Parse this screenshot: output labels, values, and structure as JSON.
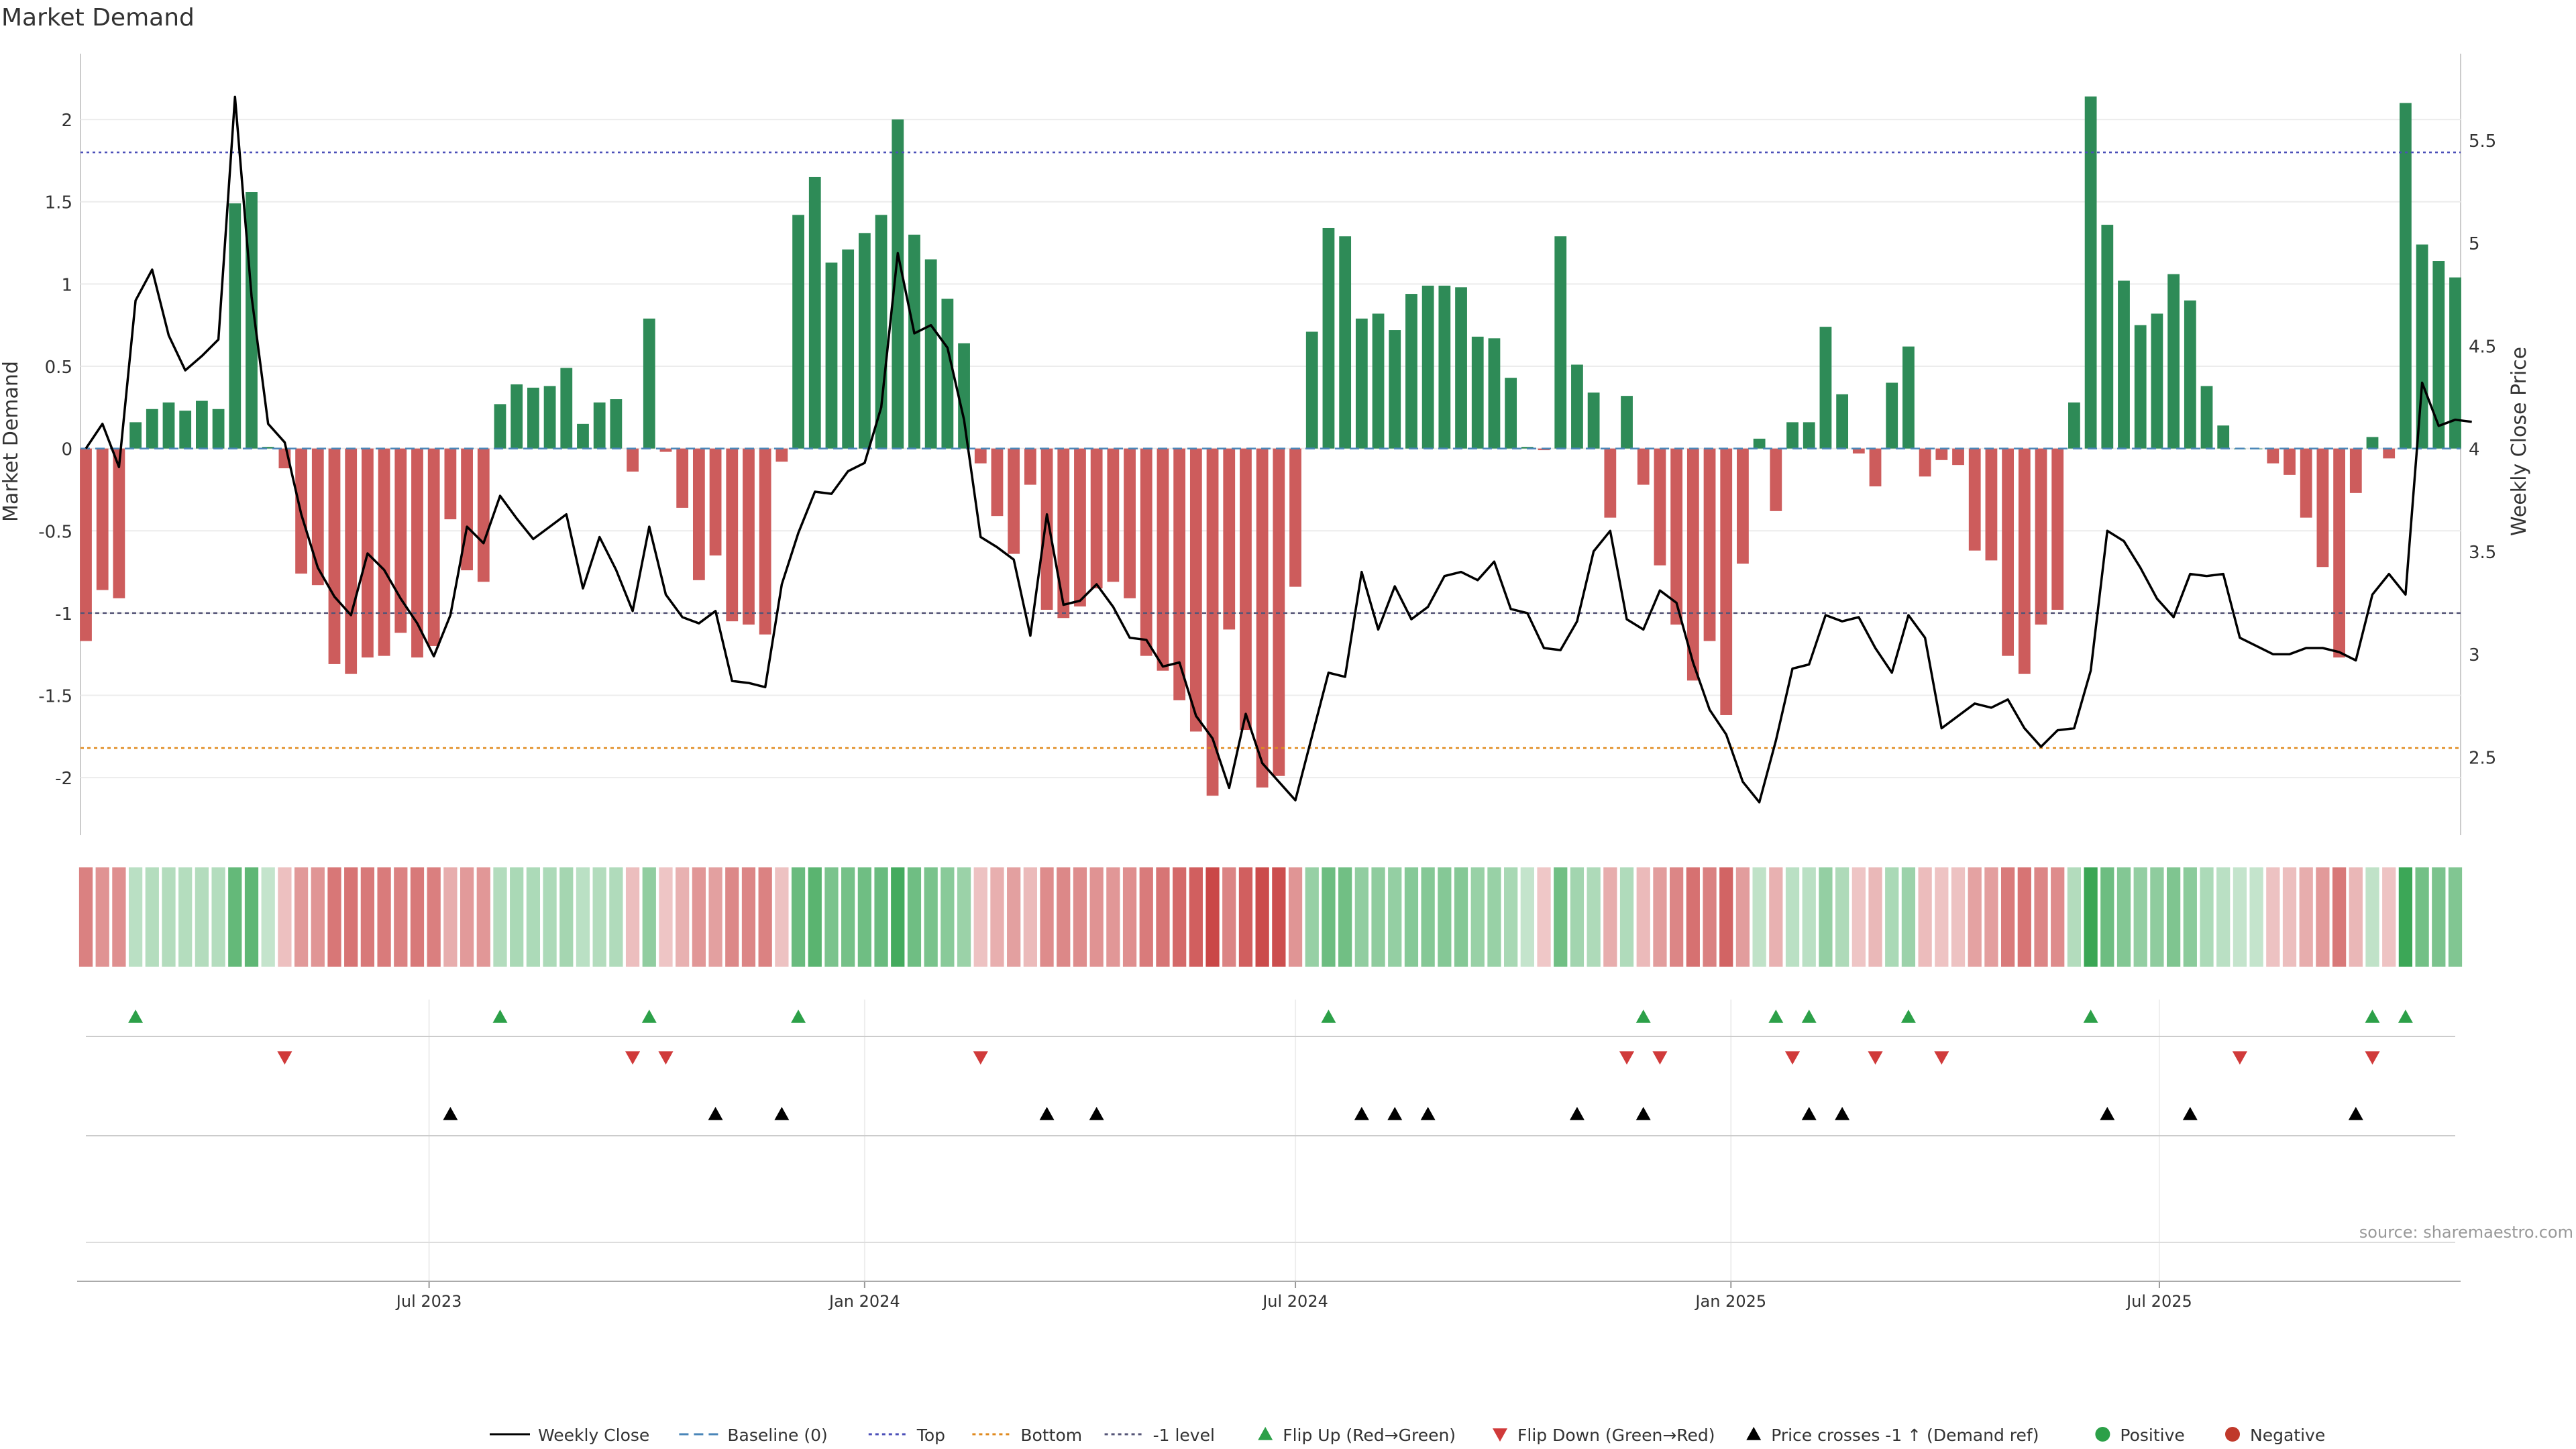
{
  "chart_data": {
    "type": "bar",
    "title": "Market Demand",
    "ylabel": "Market Demand",
    "y2label": "Weekly Close Price",
    "ylim": [
      -2.35,
      2.4
    ],
    "y2lim": [
      2.12,
      5.92
    ],
    "yticks": [
      "2",
      "1.5",
      "1",
      "0.5",
      "0",
      "-0.5",
      "-1",
      "-1.5",
      "-2"
    ],
    "ytick_values": [
      2,
      1.5,
      1,
      0.5,
      0,
      -0.5,
      -1,
      -1.5,
      -2
    ],
    "y2ticks": [
      "5.5",
      "5",
      "4.5",
      "4",
      "3.5",
      "3",
      "2.5"
    ],
    "y2tick_values": [
      5.5,
      5,
      4.5,
      4,
      3.5,
      3,
      2.5
    ],
    "levels": {
      "top": 1.8,
      "bottom": -1.82,
      "minus_one": -1
    },
    "x_start": "2023-02-06",
    "x_end": "2025-11-03",
    "xticks": [
      "Jul 2023",
      "Jan 2024",
      "Jul 2024",
      "Jan 2025",
      "Jul 2025"
    ],
    "xtick_dates": [
      "2023-07-01",
      "2024-01-01",
      "2024-07-01",
      "2025-01-01",
      "2025-07-01"
    ],
    "demand_values": [
      -1.17,
      -0.86,
      -0.91,
      0.16,
      0.24,
      0.28,
      0.23,
      0.29,
      0.24,
      1.49,
      1.56,
      0.01,
      -0.12,
      -0.76,
      -0.83,
      -1.31,
      -1.37,
      -1.27,
      -1.26,
      -1.12,
      -1.27,
      -1.2,
      -0.43,
      -0.74,
      -0.81,
      0.27,
      0.39,
      0.37,
      0.38,
      0.49,
      0.15,
      0.28,
      0.3,
      -0.14,
      0.79,
      -0.02,
      -0.36,
      -0.8,
      -0.65,
      -1.05,
      -1.07,
      -1.13,
      -0.08,
      1.42,
      1.65,
      1.13,
      1.21,
      1.31,
      1.42,
      2.0,
      1.3,
      1.15,
      0.91,
      0.64,
      -0.09,
      -0.41,
      -0.64,
      -0.22,
      -0.98,
      -1.03,
      -0.96,
      -0.85,
      -0.81,
      -0.91,
      -1.26,
      -1.35,
      -1.53,
      -1.72,
      -2.11,
      -1.1,
      -1.71,
      -2.06,
      -1.99,
      -0.84,
      0.71,
      1.34,
      1.29,
      0.79,
      0.82,
      0.72,
      0.94,
      0.99,
      0.99,
      0.98,
      0.68,
      0.67,
      0.43,
      0.01,
      -0.01,
      1.29,
      0.51,
      0.34,
      -0.42,
      0.32,
      -0.22,
      -0.71,
      -1.07,
      -1.41,
      -1.17,
      -1.62,
      -0.7,
      0.06,
      -0.38,
      0.16,
      0.16,
      0.74,
      0.33,
      -0.03,
      -0.23,
      0.4,
      0.62,
      -0.17,
      -0.07,
      -0.1,
      -0.62,
      -0.68,
      -1.26,
      -1.37,
      -1.07,
      -0.98,
      0.28,
      2.14,
      1.36,
      1.02,
      0.75,
      0.82,
      1.06,
      0.9,
      0.38,
      0.14,
      0.0,
      0.0,
      -0.09,
      -0.16,
      -0.42,
      -0.72,
      -1.27,
      -0.27,
      0.07,
      -0.06,
      2.1,
      1.24,
      1.14,
      1.04
    ],
    "price_values": [
      4.0,
      4.12,
      3.91,
      4.72,
      4.87,
      4.55,
      4.38,
      4.45,
      4.53,
      5.71,
      4.74,
      4.12,
      4.03,
      3.68,
      3.42,
      3.28,
      3.19,
      3.49,
      3.41,
      3.27,
      3.15,
      2.99,
      3.19,
      3.62,
      3.54,
      3.77,
      3.66,
      3.56,
      3.62,
      3.68,
      3.32,
      3.57,
      3.41,
      3.21,
      3.62,
      3.29,
      3.18,
      3.15,
      3.21,
      2.87,
      2.86,
      2.84,
      3.34,
      3.59,
      3.79,
      3.78,
      3.89,
      3.93,
      4.2,
      4.95,
      4.56,
      4.6,
      4.49,
      4.14,
      3.57,
      3.52,
      3.46,
      3.09,
      3.68,
      3.24,
      3.26,
      3.34,
      3.23,
      3.08,
      3.07,
      2.94,
      2.96,
      2.7,
      2.59,
      2.35,
      2.71,
      2.47,
      2.38,
      2.29,
      2.6,
      2.91,
      2.89,
      3.4,
      3.12,
      3.33,
      3.17,
      3.23,
      3.38,
      3.4,
      3.36,
      3.45,
      3.22,
      3.2,
      3.03,
      3.02,
      3.16,
      3.5,
      3.6,
      3.17,
      3.12,
      3.31,
      3.25,
      2.96,
      2.73,
      2.61,
      2.38,
      2.28,
      2.58,
      2.93,
      2.95,
      3.19,
      3.16,
      3.18,
      3.03,
      2.91,
      3.19,
      3.08,
      2.64,
      2.7,
      2.76,
      2.74,
      2.78,
      2.64,
      2.55,
      2.63,
      2.64,
      2.92,
      3.6,
      3.55,
      3.42,
      3.27,
      3.18,
      3.39,
      3.38,
      3.39,
      3.08,
      3.04,
      3.0,
      3.0,
      3.03,
      3.03,
      3.01,
      2.97,
      3.29,
      3.39,
      3.29,
      4.32,
      4.11,
      4.14,
      4.13
    ],
    "heat_row": {
      "label": "demand heat strip"
    },
    "flip_up_indexes": [
      3,
      25,
      34,
      43,
      75,
      94,
      102,
      104,
      110,
      121,
      138,
      140
    ],
    "flip_down_indexes": [
      12,
      33,
      35,
      54,
      93,
      95,
      103,
      108,
      112,
      130,
      138
    ],
    "price_cross_indexes": [
      22,
      38,
      42,
      58,
      61,
      77,
      79,
      81,
      90,
      94,
      104,
      106,
      122,
      127,
      137
    ],
    "source_note": "source: sharemaestro.com",
    "legend_position": "bottom",
    "legend": [
      {
        "label": "Weekly Close",
        "kind": "line",
        "color": "#000000"
      },
      {
        "label": "Baseline (0)",
        "kind": "dash",
        "color": "#4a86b8"
      },
      {
        "label": "Top",
        "kind": "dot",
        "color": "#4b4fb8"
      },
      {
        "label": "Bottom",
        "kind": "dot",
        "color": "#e08a1e"
      },
      {
        "label": "-1 level",
        "kind": "dot",
        "color": "#555577"
      },
      {
        "label": "Flip Up (Red→Green)",
        "kind": "up",
        "color": "#2ca048"
      },
      {
        "label": "Flip Down (Green→Red)",
        "kind": "down",
        "color": "#d03a3a"
      },
      {
        "label": "Price crosses -1 ↑ (Demand ref)",
        "kind": "up",
        "color": "#000000"
      },
      {
        "label": "Positive",
        "kind": "circle",
        "color": "#2ca048"
      },
      {
        "label": "Negative",
        "kind": "circle",
        "color": "#c0392b"
      }
    ],
    "colors": {
      "positive": "#2e8b57",
      "negative": "#cd5c5c",
      "flip_up": "#2ca048",
      "flip_down": "#d03a3a",
      "price": "#000000"
    }
  }
}
